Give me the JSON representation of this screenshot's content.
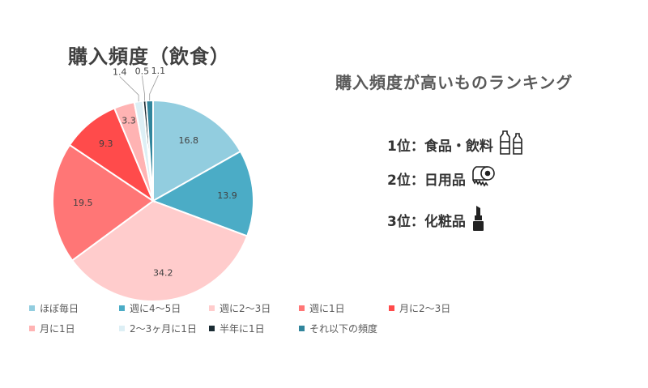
{
  "chart_data": {
    "type": "pie",
    "title": "購入頻度（飲食）",
    "categories": [
      "ほぼ毎日",
      "週に4〜5日",
      "週に2〜3日",
      "週に1日",
      "月に2〜3日",
      "月に1日",
      "2〜3ヶ月に1日",
      "半年に1日",
      "それ以下の頻度"
    ],
    "values": [
      16.8,
      13.9,
      34.2,
      19.5,
      9.3,
      3.3,
      1.4,
      0.5,
      1.1
    ],
    "value_labels": [
      "16.8",
      "13.9",
      "34.2",
      "19.5",
      "9.3",
      "3.3",
      "1.4",
      "0.5",
      "1.1"
    ],
    "colors": [
      "#92CDDF",
      "#4BACC6",
      "#FFCCCC",
      "#FF7676",
      "#FF4B4B",
      "#FFB3B3",
      "#DDEFF5",
      "#1A2B33",
      "#31859C"
    ],
    "legend_position": "bottom"
  },
  "ranking": {
    "title": "購入頻度が高いものランキング",
    "items": [
      {
        "label": "1位：食品・飲料",
        "icon": "bottles-icon"
      },
      {
        "label": "2位：日用品",
        "icon": "toilet-paper-icon"
      },
      {
        "label": "3位：化粧品",
        "icon": "lipstick-icon"
      }
    ]
  }
}
